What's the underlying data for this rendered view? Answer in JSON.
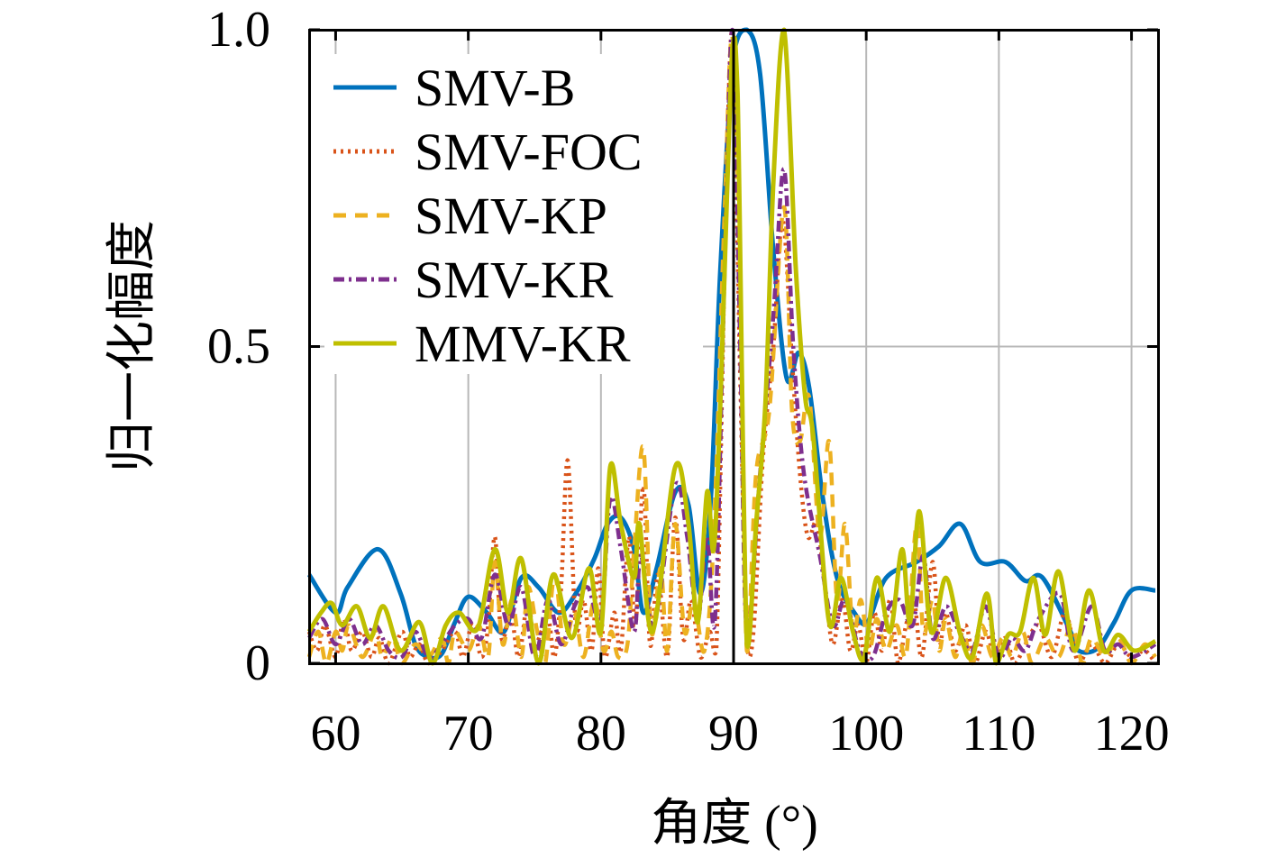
{
  "chart_data": {
    "type": "line",
    "title": "",
    "xlabel": "角度 (°)",
    "ylabel": "归一化幅度",
    "xlim": [
      58,
      122
    ],
    "ylim": [
      0,
      1
    ],
    "xticks": [
      60,
      70,
      80,
      90,
      100,
      110,
      120
    ],
    "xtick_labels": [
      "60",
      "70",
      "80",
      "90",
      "100",
      "110",
      "120"
    ],
    "yticks": [
      0,
      0.5,
      1.0
    ],
    "ytick_labels": [
      "0",
      "0.5",
      "1.0"
    ],
    "grid": true,
    "legend_position": "top-left",
    "reference_line_x": 90,
    "series": [
      {
        "name": "SMV-B",
        "color": "#0072BD",
        "style": "solid",
        "x": [
          58,
          60,
          60.9,
          63.2,
          64.9,
          66,
          67,
          68,
          69,
          70,
          71.4,
          72.7,
          74,
          75.3,
          76.8,
          78.1,
          79.5,
          80.5,
          81.5,
          82.5,
          83.2,
          84.2,
          85.6,
          86.6,
          87.5,
          88.3,
          89,
          90,
          91,
          92,
          93,
          94,
          94.9,
          95.7,
          96.7,
          97.8,
          99.1,
          100.1,
          101.5,
          103.8,
          105.5,
          107.1,
          108.6,
          110.5,
          112,
          113.3,
          115.4,
          116,
          117.4,
          118.7,
          120,
          121.8
        ],
        "y": [
          0.14,
          0.08,
          0.12,
          0.18,
          0.11,
          0.03,
          0.01,
          0.015,
          0.065,
          0.105,
          0.08,
          0.05,
          0.135,
          0.12,
          0.08,
          0.11,
          0.165,
          0.22,
          0.23,
          0.18,
          0.08,
          0.15,
          0.27,
          0.25,
          0.11,
          0.265,
          0.62,
          0.96,
          1.0,
          0.93,
          0.65,
          0.45,
          0.49,
          0.435,
          0.265,
          0.135,
          0.08,
          0.065,
          0.135,
          0.16,
          0.185,
          0.22,
          0.16,
          0.16,
          0.13,
          0.135,
          0.05,
          0.02,
          0.023,
          0.065,
          0.115,
          0.115
        ]
      },
      {
        "name": "SMV-FOC",
        "color": "#D95319",
        "style": "dotted",
        "x": [
          58,
          58.6,
          59.2,
          60,
          60.6,
          61.2,
          62,
          62.7,
          63.3,
          64,
          65,
          65.6,
          66.3,
          67,
          68,
          69,
          69.6,
          70.3,
          71,
          71.5,
          72,
          72.5,
          73.2,
          73.8,
          74.5,
          75,
          76,
          76.5,
          77,
          77.5,
          78.1,
          78.7,
          79.3,
          79.8,
          80.3,
          81,
          81.5,
          82.1,
          82.6,
          83.2,
          83.7,
          84.3,
          85,
          85.6,
          86.2,
          86.8,
          87.5,
          88.2,
          88.7,
          89.4,
          89.9,
          90.5,
          91,
          91.5,
          92.2,
          93,
          93.7,
          94.4,
          95,
          95.6,
          96.3,
          97,
          97.5,
          98.2,
          98.8,
          99.4,
          100,
          100.6,
          101.2,
          101.8,
          102.4,
          103,
          103.6,
          104.2,
          105,
          105.5,
          106,
          106.7,
          107.5,
          108.2,
          109,
          109.7,
          110.5,
          111.2,
          112,
          113,
          114,
          115,
          116,
          117,
          118,
          119,
          120,
          121,
          121.8
        ],
        "y": [
          0.05,
          0.02,
          0.06,
          0.01,
          0.07,
          0.02,
          0.05,
          0.01,
          0.04,
          0.0,
          0.05,
          0.01,
          0.03,
          0.0,
          0.02,
          0.05,
          0.01,
          0.06,
          0.01,
          0.06,
          0.2,
          0.04,
          0.08,
          0.01,
          0.1,
          0.03,
          0.07,
          0.01,
          0.12,
          0.32,
          0.06,
          0.1,
          0.02,
          0.15,
          0.01,
          0.08,
          0.02,
          0.2,
          0.06,
          0.28,
          0.03,
          0.14,
          0.01,
          0.23,
          0.04,
          0.1,
          0.01,
          0.05,
          0.02,
          0.7,
          1.0,
          0.45,
          0.03,
          0.05,
          0.32,
          0.5,
          0.7,
          0.48,
          0.3,
          0.2,
          0.22,
          0.1,
          0.03,
          0.1,
          0.02,
          0.06,
          0.0,
          0.08,
          0.02,
          0.1,
          0.0,
          0.06,
          0.1,
          0.01,
          0.16,
          0.03,
          0.08,
          0.02,
          0.06,
          0.0,
          0.05,
          0.01,
          0.04,
          0.0,
          0.03,
          0.06,
          0.01,
          0.08,
          0.0,
          0.03,
          0.0,
          0.03,
          0.01,
          0.02,
          0.0
        ]
      },
      {
        "name": "SMV-KP",
        "color": "#EDB120",
        "style": "dashed",
        "x": [
          58,
          58.7,
          59.3,
          60,
          60.5,
          61,
          62,
          63,
          63.5,
          64.3,
          65,
          66,
          67,
          68,
          68.5,
          69,
          70,
          70.8,
          71.5,
          72,
          72.6,
          73.3,
          74,
          74.5,
          75.2,
          75.8,
          76.5,
          77.2,
          78,
          78.7,
          79.5,
          80.2,
          80.8,
          81.3,
          82,
          82.5,
          83.2,
          83.8,
          84.5,
          85,
          85.6,
          86.3,
          87,
          87.8,
          88.5,
          89.3,
          89.9,
          90.5,
          91,
          91.7,
          92.7,
          93.8,
          94.4,
          95,
          95.7,
          96.5,
          97.2,
          97.8,
          98.4,
          99,
          99.6,
          100.2,
          100.8,
          101.5,
          102.3,
          103,
          103.8,
          104.3,
          105,
          105.5,
          106,
          106.7,
          107.3,
          108,
          108.7,
          109.5,
          110.3,
          111,
          111.8,
          112.5,
          113.5,
          114.5,
          115.5,
          116.3,
          117,
          118,
          119,
          120,
          121,
          121.8
        ],
        "y": [
          0.01,
          0.05,
          0.0,
          0.05,
          0.02,
          0.06,
          0.01,
          0.05,
          0.01,
          0.04,
          0.0,
          0.03,
          0.01,
          0.04,
          0.0,
          0.05,
          0.02,
          0.06,
          0.01,
          0.16,
          0.03,
          0.1,
          0.01,
          0.12,
          0.05,
          0.0,
          0.14,
          0.03,
          0.08,
          0.01,
          0.1,
          0.02,
          0.05,
          0.01,
          0.03,
          0.18,
          0.34,
          0.05,
          0.15,
          0.02,
          0.22,
          0.05,
          0.1,
          0.02,
          0.2,
          0.7,
          0.99,
          0.6,
          0.02,
          0.3,
          0.4,
          0.72,
          0.4,
          0.35,
          0.42,
          0.2,
          0.35,
          0.1,
          0.22,
          0.05,
          0.1,
          0.02,
          0.07,
          0.02,
          0.06,
          0.01,
          0.22,
          0.05,
          0.1,
          0.02,
          0.07,
          0.01,
          0.05,
          0.0,
          0.06,
          0.01,
          0.04,
          0.01,
          0.05,
          0.0,
          0.04,
          0.01,
          0.06,
          0.0,
          0.04,
          0.01,
          0.04,
          0.0,
          0.03,
          0.01
        ]
      },
      {
        "name": "SMV-KR",
        "color": "#7E2F8E",
        "style": "dashdot",
        "x": [
          58,
          59,
          60,
          61,
          62,
          63,
          64,
          65,
          66,
          67,
          68,
          69,
          70,
          71,
          72,
          73,
          74,
          75,
          76,
          77,
          78,
          79,
          80,
          80.7,
          81.5,
          82.5,
          83,
          84,
          85.6,
          86.5,
          87.3,
          88,
          88.6,
          89.3,
          89.9,
          90.5,
          91,
          92,
          93,
          93.8,
          94.5,
          95.3,
          96.5,
          97.5,
          98.4,
          99.5,
          100.5,
          101.5,
          102.5,
          103.5,
          104.3,
          105,
          106,
          107,
          108,
          109,
          110,
          111,
          112,
          113,
          114.6,
          115.6,
          117,
          118,
          119,
          120,
          121.8
        ],
        "y": [
          0.04,
          0.07,
          0.03,
          0.07,
          0.03,
          0.06,
          0.02,
          0.01,
          0.05,
          0.01,
          0.03,
          0.06,
          0.07,
          0.04,
          0.14,
          0.06,
          0.12,
          0.01,
          0.1,
          0.03,
          0.09,
          0.12,
          0.07,
          0.26,
          0.18,
          0.05,
          0.17,
          0.06,
          0.28,
          0.2,
          0.07,
          0.2,
          0.07,
          0.6,
          1.0,
          0.5,
          0.05,
          0.3,
          0.55,
          0.78,
          0.5,
          0.3,
          0.17,
          0.06,
          0.1,
          0.02,
          0.01,
          0.08,
          0.1,
          0.06,
          0.17,
          0.04,
          0.09,
          0.05,
          0.02,
          0.09,
          0.01,
          0.04,
          0.02,
          0.07,
          0.11,
          0.02,
          0.09,
          0.02,
          0.03,
          0.01,
          0.03
        ]
      },
      {
        "name": "MMV-KR",
        "color": "#BFBF00",
        "style": "solid",
        "x": [
          58,
          58.9,
          59.7,
          60.5,
          61.6,
          62.6,
          63.6,
          64.9,
          66.3,
          67.3,
          68.3,
          69.3,
          70.7,
          72,
          73,
          74,
          75.3,
          76.4,
          77.8,
          79.1,
          80,
          80.7,
          81.5,
          82.5,
          82.9,
          83.9,
          85.6,
          86.6,
          87.3,
          88,
          88.5,
          89,
          89.9,
          90.3,
          91,
          91.7,
          92.4,
          93,
          93.8,
          94.7,
          95.4,
          96,
          97.2,
          98.1,
          99,
          99.8,
          100.8,
          101.8,
          102.7,
          103.3,
          104,
          104.9,
          106,
          107.1,
          108,
          109.1,
          109.8,
          110.7,
          111.6,
          112.6,
          113.5,
          114.5,
          115.7,
          116.8,
          117.9,
          119,
          120.2,
          121.8
        ],
        "y": [
          0.05,
          0.08,
          0.095,
          0.06,
          0.09,
          0.04,
          0.09,
          0.02,
          0.065,
          0.0,
          0.06,
          0.08,
          0.055,
          0.18,
          0.08,
          0.165,
          0.0,
          0.14,
          0.04,
          0.15,
          0.05,
          0.31,
          0.22,
          0.135,
          0.22,
          0.05,
          0.31,
          0.22,
          0.065,
          0.27,
          0.18,
          0.41,
          0.97,
          0.9,
          0.03,
          0.22,
          0.41,
          0.76,
          1.0,
          0.62,
          0.42,
          0.36,
          0.065,
          0.135,
          0.05,
          0.005,
          0.135,
          0.05,
          0.18,
          0.065,
          0.24,
          0.05,
          0.135,
          0.045,
          0.01,
          0.11,
          0.0,
          0.045,
          0.05,
          0.135,
          0.045,
          0.145,
          0.02,
          0.115,
          0.02,
          0.045,
          0.02,
          0.035
        ]
      }
    ]
  }
}
